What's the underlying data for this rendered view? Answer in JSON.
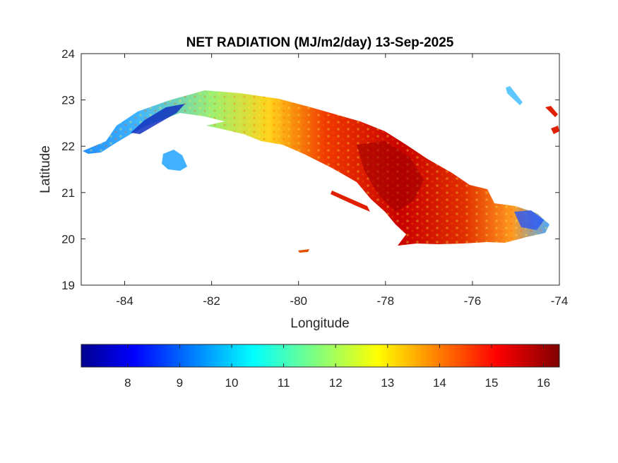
{
  "figure": {
    "title": "NET RADIATION (MJ/m2/day) 13-Sep-2025",
    "xlabel": "Longitude",
    "ylabel": "Latitude",
    "xlim": [
      -85,
      -74
    ],
    "ylim": [
      19,
      24
    ],
    "xticks": [
      "-84",
      "-82",
      "-80",
      "-78",
      "-76",
      "-74"
    ],
    "yticks": [
      "24",
      "23",
      "22",
      "21",
      "20",
      "19"
    ],
    "colorbar": {
      "colormap": "jet",
      "range": [
        7.1,
        16.3
      ],
      "ticks": [
        "8",
        "9",
        "10",
        "11",
        "12",
        "13",
        "14",
        "15",
        "16"
      ]
    },
    "colors": {
      "low": "#00008f",
      "mid": "#00ffff",
      "high": "#800000",
      "axis": "#262626"
    }
  }
}
